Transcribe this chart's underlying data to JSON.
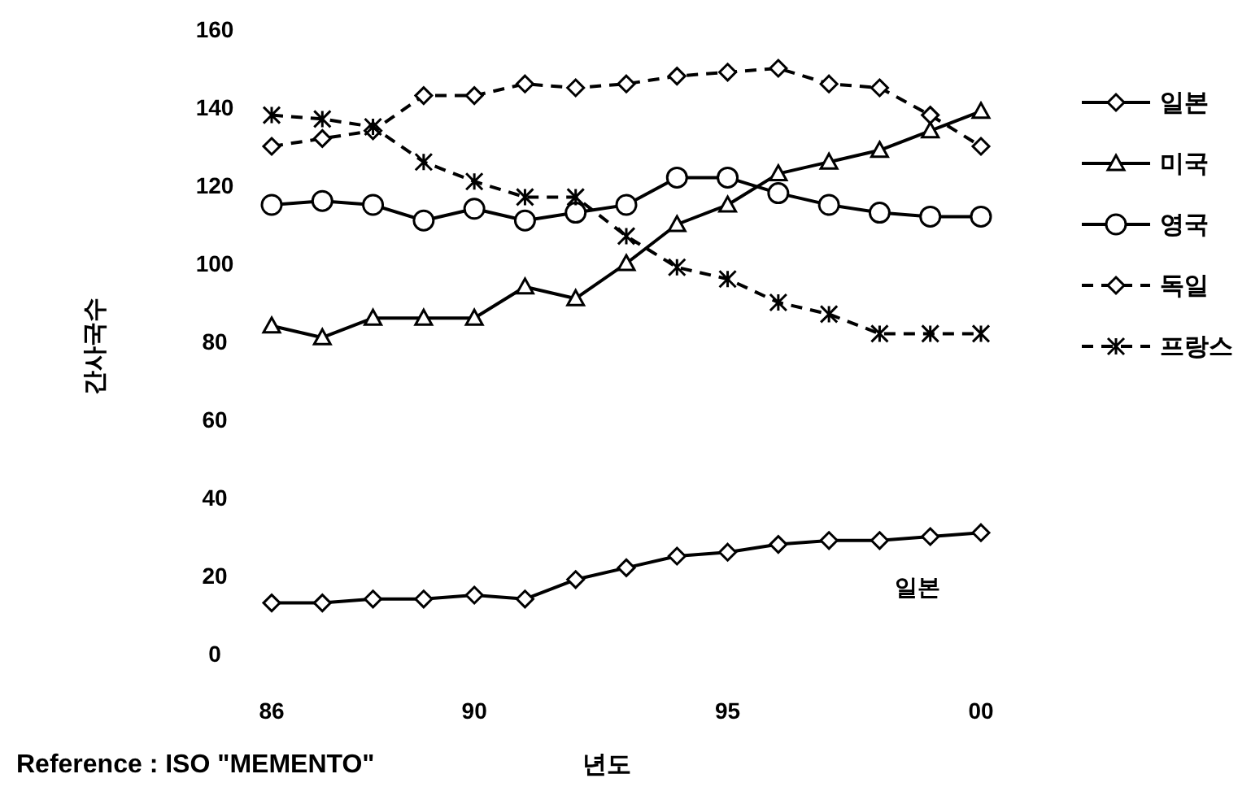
{
  "chart_data": {
    "type": "line",
    "xlabel": "년도",
    "ylabel": "간사국수",
    "x": [
      1986,
      1987,
      1988,
      1989,
      1990,
      1991,
      1992,
      1993,
      1994,
      1995,
      1996,
      1997,
      1998,
      1999,
      2000
    ],
    "xlim": [
      1986,
      2000
    ],
    "xticks": [
      {
        "value": 1986,
        "label": "86"
      },
      {
        "value": 1990,
        "label": "90"
      },
      {
        "value": 1995,
        "label": "95"
      },
      {
        "value": 2000,
        "label": "00"
      }
    ],
    "ylim": [
      0,
      160
    ],
    "yticks": [
      0,
      20,
      40,
      60,
      80,
      100,
      120,
      140,
      160
    ],
    "grid": false,
    "legend": "right",
    "series": [
      {
        "name": "일본",
        "color": "#000000",
        "marker": "diamond",
        "line_style": "solid",
        "values": [
          13,
          13,
          14,
          14,
          15,
          14,
          19,
          22,
          25,
          26,
          28,
          29,
          29,
          30,
          31
        ]
      },
      {
        "name": "미국",
        "color": "#000000",
        "marker": "triangle",
        "line_style": "solid",
        "values": [
          84,
          81,
          86,
          86,
          86,
          94,
          91,
          100,
          110,
          115,
          123,
          126,
          129,
          134,
          139
        ]
      },
      {
        "name": "영국",
        "color": "#000000",
        "marker": "circle",
        "line_style": "solid",
        "values": [
          115,
          116,
          115,
          111,
          114,
          111,
          113,
          115,
          122,
          122,
          118,
          115,
          113,
          112,
          112
        ]
      },
      {
        "name": "독일",
        "color": "#000000",
        "marker": "diamond",
        "line_style": "dashed",
        "values": [
          130,
          132,
          134,
          143,
          143,
          146,
          145,
          146,
          148,
          149,
          150,
          146,
          145,
          138,
          130
        ]
      },
      {
        "name": "프랑스",
        "color": "#000000",
        "marker": "cross",
        "line_style": "dashed",
        "values": [
          138,
          137,
          135,
          126,
          121,
          117,
          117,
          107,
          99,
          96,
          90,
          87,
          82,
          82,
          82
        ]
      }
    ],
    "annotations": [
      "일본",
      "Reference : ISO \"MEMENTO\""
    ]
  }
}
